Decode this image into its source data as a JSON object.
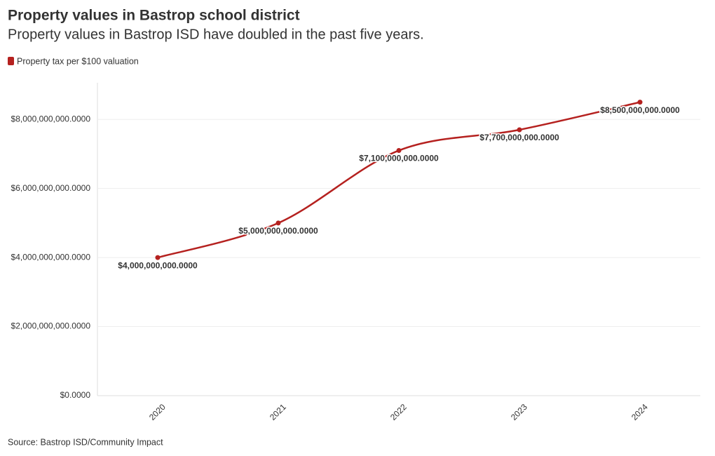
{
  "chart_data": {
    "type": "line",
    "title": "Property values in Bastrop school district",
    "subtitle": "Property values in Bastrop ISD have doubled in the past five years.",
    "source": "Source: Bastrop ISD/Community Impact",
    "categories": [
      "2020",
      "2021",
      "2022",
      "2023",
      "2024"
    ],
    "series": [
      {
        "name": "Property tax per $100 valuation",
        "color": "#b5211f",
        "values": [
          4000000000,
          5000000000,
          7100000000,
          7700000000,
          8500000000
        ],
        "value_labels": [
          "$4,000,000,000.0000",
          "$5,000,000,000.0000",
          "$7,100,000,000.0000",
          "$7,700,000,000.0000",
          "$8,500,000,000.0000"
        ]
      }
    ],
    "ylim": [
      0,
      9000000000
    ],
    "yticks": [
      {
        "value": 0,
        "label": "$0.0000"
      },
      {
        "value": 2000000000,
        "label": "$2,000,000,000.0000"
      },
      {
        "value": 4000000000,
        "label": "$4,000,000,000.0000"
      },
      {
        "value": 6000000000,
        "label": "$6,000,000,000.0000"
      },
      {
        "value": 8000000000,
        "label": "$8,000,000,000.0000"
      }
    ],
    "grid": true,
    "smooth": true
  }
}
